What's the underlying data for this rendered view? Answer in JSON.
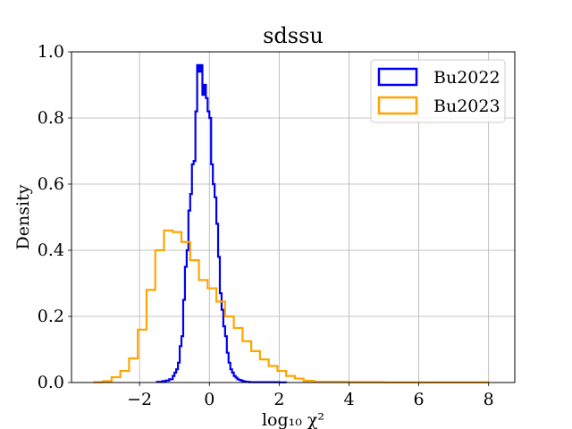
{
  "chart_data": {
    "type": "histogram",
    "title": "sdssu",
    "xlabel": "log₁₀ χ²",
    "ylabel": "Density",
    "xlim": [
      -3.95,
      8.75
    ],
    "ylim": [
      0,
      1.0
    ],
    "xticks": [
      -2,
      0,
      2,
      4,
      6,
      8
    ],
    "xtick_labels": [
      "−2",
      "0",
      "2",
      "4",
      "6",
      "8"
    ],
    "yticks": [
      0.0,
      0.2,
      0.4,
      0.6,
      0.8,
      1.0
    ],
    "ytick_labels": [
      "0.0",
      "0.2",
      "0.4",
      "0.6",
      "0.8",
      "1.0"
    ],
    "grid": true,
    "legend_position": "top-right",
    "series": [
      {
        "name": "Bu2022",
        "color": "#0000ee",
        "edges": [
          -1.5,
          -1.35,
          -1.25,
          -1.15,
          -1.05,
          -1.0,
          -0.95,
          -0.9,
          -0.85,
          -0.8,
          -0.75,
          -0.7,
          -0.65,
          -0.6,
          -0.55,
          -0.5,
          -0.45,
          -0.4,
          -0.35,
          -0.3,
          -0.25,
          -0.2,
          -0.15,
          -0.1,
          -0.05,
          0.0,
          0.05,
          0.1,
          0.15,
          0.2,
          0.25,
          0.3,
          0.35,
          0.4,
          0.45,
          0.5,
          0.55,
          0.6,
          0.65,
          0.7,
          0.75,
          0.8,
          0.85,
          0.9,
          0.95,
          1.0,
          1.05,
          1.1,
          1.15,
          1.25,
          1.35,
          1.45,
          1.6,
          1.8,
          2.0,
          2.2
        ],
        "values": [
          0.002,
          0.004,
          0.006,
          0.01,
          0.02,
          0.03,
          0.04,
          0.06,
          0.11,
          0.14,
          0.25,
          0.35,
          0.4,
          0.52,
          0.57,
          0.66,
          0.67,
          0.82,
          0.96,
          0.94,
          0.96,
          0.87,
          0.9,
          0.86,
          0.82,
          0.8,
          0.66,
          0.6,
          0.56,
          0.48,
          0.38,
          0.27,
          0.22,
          0.17,
          0.14,
          0.09,
          0.06,
          0.04,
          0.03,
          0.02,
          0.015,
          0.01,
          0.008,
          0.006,
          0.004,
          0.003,
          0.002,
          0.002,
          0.001,
          0.001,
          0.001,
          0.001,
          0.001,
          0.001,
          0.0005
        ]
      },
      {
        "name": "Bu2023",
        "color": "#ffa500",
        "edges": [
          -3.3,
          -3.05,
          -2.8,
          -2.55,
          -2.3,
          -2.05,
          -1.8,
          -1.55,
          -1.3,
          -1.05,
          -0.8,
          -0.55,
          -0.3,
          -0.05,
          0.2,
          0.45,
          0.7,
          0.95,
          1.2,
          1.45,
          1.7,
          1.95,
          2.2,
          2.45,
          2.7,
          3.0,
          4.0,
          5.0,
          6.0,
          7.0,
          8.0
        ],
        "values": [
          0.001,
          0.004,
          0.016,
          0.035,
          0.073,
          0.16,
          0.28,
          0.4,
          0.46,
          0.455,
          0.425,
          0.37,
          0.31,
          0.285,
          0.245,
          0.2,
          0.165,
          0.125,
          0.095,
          0.07,
          0.05,
          0.035,
          0.02,
          0.012,
          0.005,
          0.002,
          0.001,
          0.0005,
          0.0005,
          0.0005
        ]
      }
    ]
  }
}
